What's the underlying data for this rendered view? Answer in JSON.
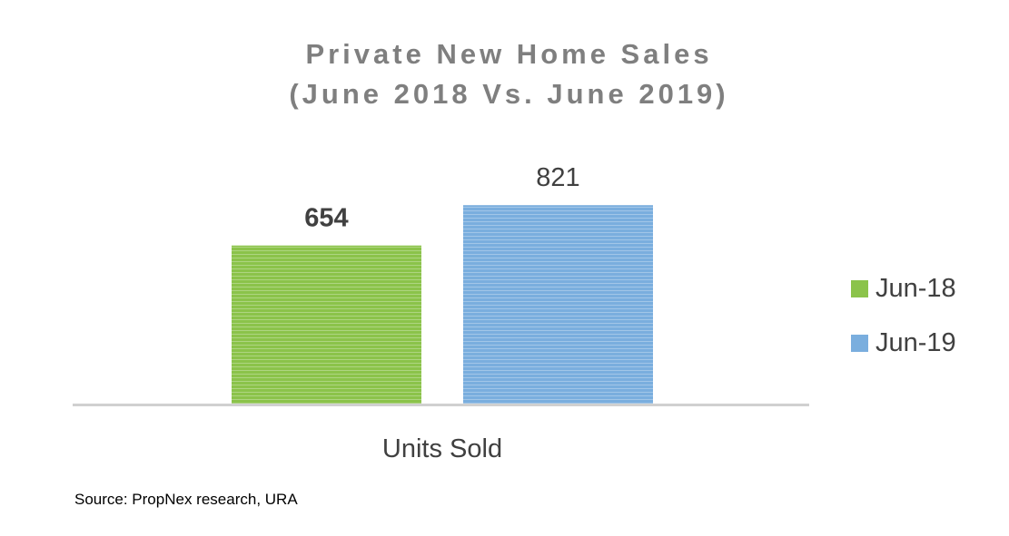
{
  "chart_data": {
    "type": "bar",
    "title_lines": [
      "Private New Home Sales",
      "(June 2018 Vs. June 2019)"
    ],
    "categories": [
      "Units Sold"
    ],
    "series": [
      {
        "name": "Jun-18",
        "values": [
          654
        ],
        "color": "#8bc34a",
        "value_label": "654",
        "label_bold": true
      },
      {
        "name": "Jun-19",
        "values": [
          821
        ],
        "color": "#7aaede",
        "value_label": "821",
        "label_bold": false
      }
    ],
    "xlabel": "",
    "ylabel": "",
    "ylim": [
      0,
      1000
    ],
    "grid": false,
    "legend_placement": "right",
    "source": "Source: PropNex research, URA"
  }
}
